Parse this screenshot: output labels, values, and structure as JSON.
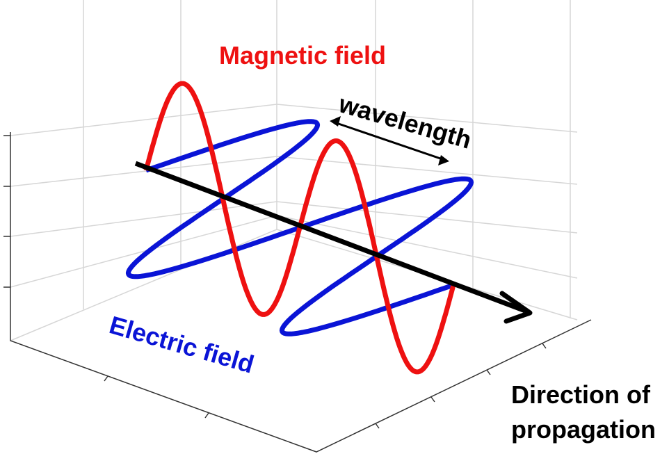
{
  "labels": {
    "magnetic_field": "Magnetic field",
    "wavelength": "wavelength",
    "electric_field": "Electric field",
    "direction": [
      "Direction of",
      "propagation"
    ]
  }
}
